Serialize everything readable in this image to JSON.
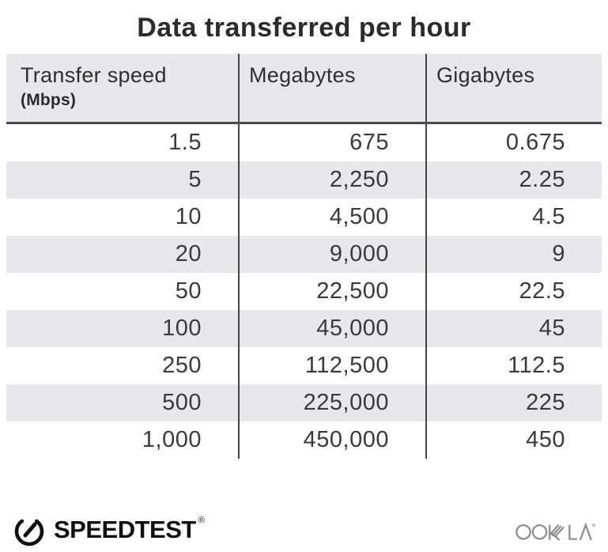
{
  "title": "Data transferred per hour",
  "table": {
    "columns": [
      {
        "label": "Transfer speed",
        "sublabel": "(Mbps)"
      },
      {
        "label": "Megabytes",
        "sublabel": ""
      },
      {
        "label": "Gigabytes",
        "sublabel": ""
      }
    ],
    "rows": [
      [
        "1.5",
        "675",
        "0.675"
      ],
      [
        "5",
        "2,250",
        "2.25"
      ],
      [
        "10",
        "4,500",
        "4.5"
      ],
      [
        "20",
        "9,000",
        "9"
      ],
      [
        "50",
        "22,500",
        "22.5"
      ],
      [
        "100",
        "45,000",
        "45"
      ],
      [
        "250",
        "112,500",
        "112.5"
      ],
      [
        "500",
        "225,000",
        "225"
      ],
      [
        "1,000",
        "450,000",
        "450"
      ]
    ]
  },
  "chart_data": {
    "type": "table",
    "title": "Data transferred per hour",
    "columns": [
      "Transfer speed (Mbps)",
      "Megabytes",
      "Gigabytes"
    ],
    "rows": [
      [
        1.5,
        675,
        0.675
      ],
      [
        5,
        2250,
        2.25
      ],
      [
        10,
        4500,
        4.5
      ],
      [
        20,
        9000,
        9
      ],
      [
        50,
        22500,
        22.5
      ],
      [
        100,
        45000,
        45
      ],
      [
        250,
        112500,
        112.5
      ],
      [
        500,
        225000,
        225
      ],
      [
        1000,
        450000,
        450
      ]
    ]
  },
  "footer": {
    "speedtest_label": "SPEEDTEST",
    "speedtest_trademark": "®",
    "ookla_label": "OOKLA"
  },
  "colors": {
    "header_bg": "#e8e8ec",
    "stripe_bg": "#e8e8ec",
    "divider": "#4a4a4a",
    "title_text": "#2b2b2b",
    "body_text": "#3a3a3a",
    "logo_black": "#101010",
    "ookla_gray": "#8e8e8e"
  }
}
